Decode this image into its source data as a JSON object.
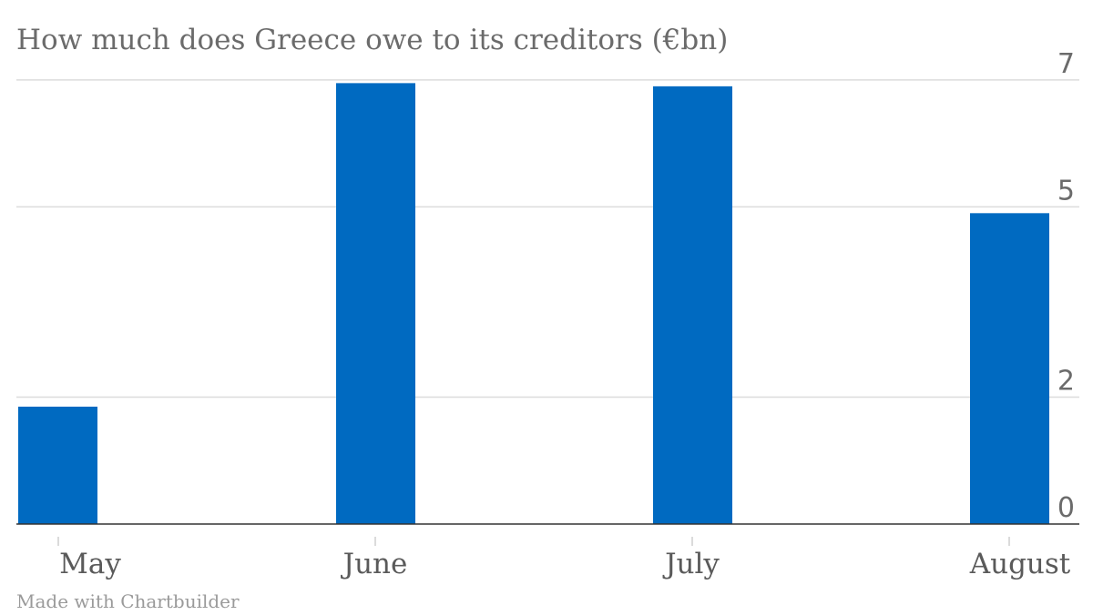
{
  "chart_data": {
    "type": "bar",
    "title": "How much does Greece owe to its creditors (€bn)",
    "categories": [
      "May",
      "June",
      "July",
      "August"
    ],
    "values": [
      1.85,
      6.95,
      6.9,
      4.9
    ],
    "ylim": [
      0,
      7.4
    ],
    "yticks": [
      {
        "value": 0,
        "label": "0"
      },
      {
        "value": 2,
        "label": "2"
      },
      {
        "value": 5,
        "label": "5"
      },
      {
        "value": 7,
        "label": "7"
      }
    ],
    "xlabel": "",
    "ylabel": "",
    "grid": true,
    "bar_color": "#006ac1",
    "grid_color": "#dcdcdc",
    "axis_color": "#333333"
  },
  "footer": {
    "credit": "Made with Chartbuilder"
  }
}
